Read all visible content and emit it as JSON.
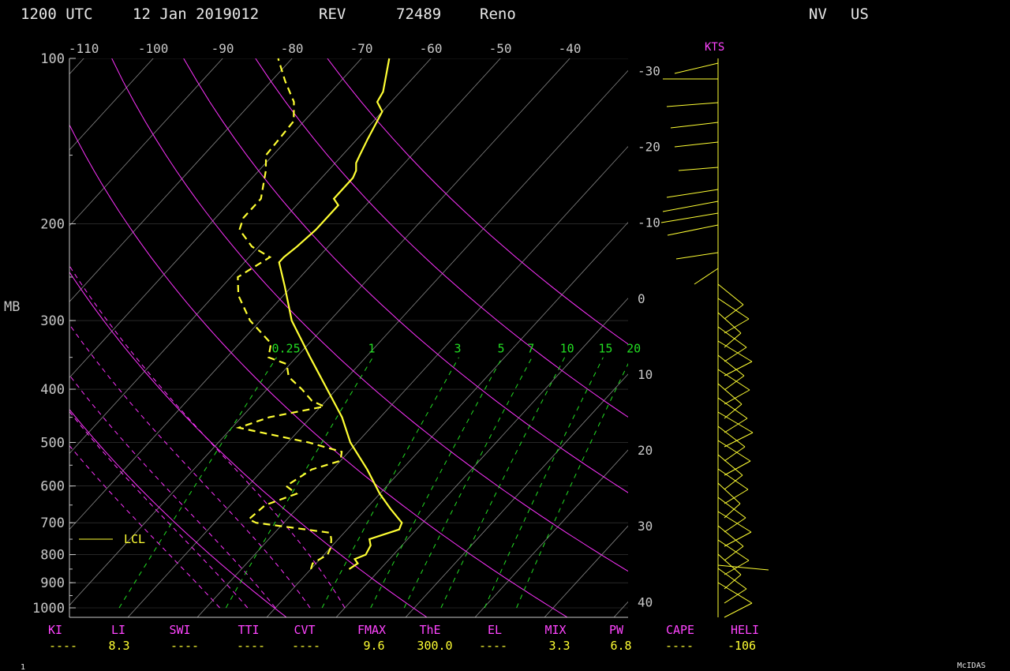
{
  "header": {
    "time": "1200 UTC",
    "date": "12 Jan 2019012",
    "rev": "REV",
    "station_id": "72489",
    "station_name": "Reno",
    "state": "NV",
    "country": "US"
  },
  "footer": {
    "page": "1",
    "brand": "McIDAS"
  },
  "colors": {
    "temperature": "#ffff33",
    "dewpoint": "#ffff33",
    "adiabat": "#ff33ff",
    "mixing_ratio": "#22dd22",
    "isotherm": "#b4b4b4",
    "background": "#000000"
  },
  "chart_data": {
    "type": "skew-t",
    "title": "",
    "ylabel": "MB",
    "y_scale": "log",
    "ylim": [
      1000,
      100
    ],
    "pressure_ticks": [
      "100",
      "200",
      "300",
      "400",
      "500",
      "600",
      "700",
      "800",
      "900",
      "1000"
    ],
    "top_temp_ticks": [
      "-110",
      "-100",
      "-90",
      "-80",
      "-70",
      "-60",
      "-50",
      "-40"
    ],
    "right_temp_ticks": [
      "-30",
      "-20",
      "-10",
      "0",
      "10",
      "20",
      "30",
      "40"
    ],
    "mixing_ratio_labels": [
      "0.25",
      "1",
      "3",
      "5",
      "7",
      "10",
      "15",
      "20"
    ],
    "wind_units": "KTS",
    "lcl_label": "LCL",
    "lcl_pressure": 750,
    "temperature_profile": [
      {
        "p": 850,
        "t": -4.5
      },
      {
        "p": 830,
        "t": -4.0
      },
      {
        "p": 815,
        "t": -5.0
      },
      {
        "p": 800,
        "t": -4.0
      },
      {
        "p": 770,
        "t": -4.5
      },
      {
        "p": 750,
        "t": -5.5
      },
      {
        "p": 720,
        "t": -2.5
      },
      {
        "p": 700,
        "t": -3.0
      },
      {
        "p": 660,
        "t": -6.5
      },
      {
        "p": 620,
        "t": -10.0
      },
      {
        "p": 560,
        "t": -15.0
      },
      {
        "p": 500,
        "t": -21.0
      },
      {
        "p": 450,
        "t": -25.5
      },
      {
        "p": 350,
        "t": -38.0
      },
      {
        "p": 300,
        "t": -45.5
      },
      {
        "p": 260,
        "t": -51.0
      },
      {
        "p": 235,
        "t": -55.0
      },
      {
        "p": 230,
        "t": -55.0
      },
      {
        "p": 220,
        "t": -54.5
      },
      {
        "p": 205,
        "t": -54.0
      },
      {
        "p": 185,
        "t": -54.0
      },
      {
        "p": 180,
        "t": -55.5
      },
      {
        "p": 165,
        "t": -55.5
      },
      {
        "p": 160,
        "t": -56.0
      },
      {
        "p": 155,
        "t": -57.0
      },
      {
        "p": 150,
        "t": -57.5
      },
      {
        "p": 140,
        "t": -58.5
      },
      {
        "p": 125,
        "t": -60.0
      },
      {
        "p": 120,
        "t": -62.0
      },
      {
        "p": 115,
        "t": -62.5
      },
      {
        "p": 100,
        "t": -66.0
      }
    ],
    "dewpoint_profile": [
      {
        "p": 850,
        "t": -10.0
      },
      {
        "p": 830,
        "t": -10.5
      },
      {
        "p": 800,
        "t": -9.5
      },
      {
        "p": 775,
        "t": -10.0
      },
      {
        "p": 750,
        "t": -11.0
      },
      {
        "p": 730,
        "t": -12.0
      },
      {
        "p": 700,
        "t": -24.0
      },
      {
        "p": 690,
        "t": -25.5
      },
      {
        "p": 650,
        "t": -25.0
      },
      {
        "p": 620,
        "t": -22.0
      },
      {
        "p": 600,
        "t": -24.5
      },
      {
        "p": 560,
        "t": -23.0
      },
      {
        "p": 540,
        "t": -20.0
      },
      {
        "p": 520,
        "t": -21.0
      },
      {
        "p": 500,
        "t": -27.0
      },
      {
        "p": 480,
        "t": -35.0
      },
      {
        "p": 470,
        "t": -39.0
      },
      {
        "p": 450,
        "t": -36.0
      },
      {
        "p": 430,
        "t": -29.5
      },
      {
        "p": 420,
        "t": -32.0
      },
      {
        "p": 400,
        "t": -35.0
      },
      {
        "p": 380,
        "t": -38.5
      },
      {
        "p": 360,
        "t": -40.5
      },
      {
        "p": 350,
        "t": -44.0
      },
      {
        "p": 330,
        "t": -45.5
      },
      {
        "p": 300,
        "t": -51.5
      },
      {
        "p": 270,
        "t": -56.5
      },
      {
        "p": 250,
        "t": -59.0
      },
      {
        "p": 230,
        "t": -57.0
      },
      {
        "p": 220,
        "t": -61.0
      },
      {
        "p": 205,
        "t": -65.0
      },
      {
        "p": 195,
        "t": -66.0
      },
      {
        "p": 180,
        "t": -66.0
      },
      {
        "p": 160,
        "t": -69.0
      },
      {
        "p": 150,
        "t": -71.0
      },
      {
        "p": 130,
        "t": -71.5
      },
      {
        "p": 120,
        "t": -74.0
      },
      {
        "p": 110,
        "t": -78.0
      },
      {
        "p": 100,
        "t": -82.0
      }
    ],
    "indices": [
      {
        "name": "KI",
        "value": "----"
      },
      {
        "name": "LI",
        "value": "8.3"
      },
      {
        "name": "SWI",
        "value": "----"
      },
      {
        "name": "TTI",
        "value": "----"
      },
      {
        "name": "CVT",
        "value": "----"
      },
      {
        "name": "FMAX",
        "value": "9.6"
      },
      {
        "name": "ThE",
        "value": "300.0"
      },
      {
        "name": "EL",
        "value": "----"
      },
      {
        "name": "MIX",
        "value": "3.3"
      },
      {
        "name": "PW",
        "value": "6.8"
      },
      {
        "name": "CAPE",
        "value": "----"
      },
      {
        "name": "HELI",
        "value": "-106"
      }
    ]
  }
}
